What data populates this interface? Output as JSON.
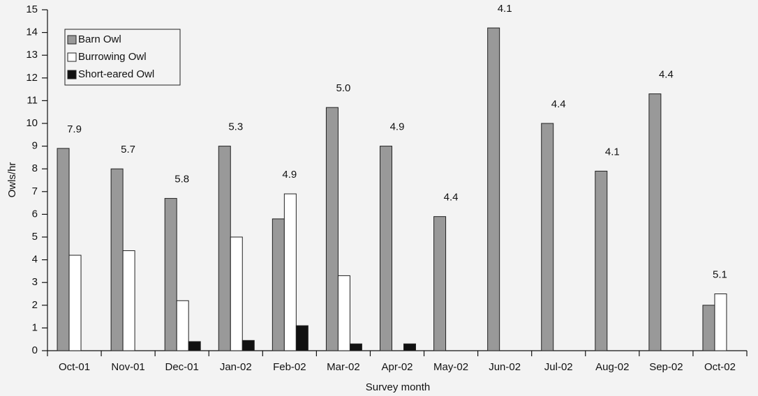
{
  "chart_data": {
    "type": "bar",
    "x_label": "Survey month",
    "y_label": "Owls/hr",
    "categories": [
      "Oct-01",
      "Nov-01",
      "Dec-01",
      "Jan-02",
      "Feb-02",
      "Mar-02",
      "Apr-02",
      "May-02",
      "Jun-02",
      "Jul-02",
      "Aug-02",
      "Sep-02",
      "Oct-02"
    ],
    "series": [
      {
        "name": "Barn Owl",
        "color": "#999999",
        "values": [
          8.9,
          8.0,
          6.7,
          9.0,
          5.8,
          10.7,
          9.0,
          5.9,
          14.2,
          10.0,
          7.9,
          11.3,
          2.0
        ]
      },
      {
        "name": "Burrowing Owl",
        "color": "#ffffff",
        "values": [
          4.2,
          4.4,
          2.2,
          5.0,
          6.9,
          3.3,
          0,
          0,
          0,
          0,
          0,
          0,
          2.5
        ]
      },
      {
        "name": "Short-eared Owl",
        "color": "#111111",
        "values": [
          0,
          0,
          0.4,
          0.45,
          1.1,
          0.3,
          0.3,
          0,
          0,
          0,
          0,
          0,
          0
        ]
      }
    ],
    "annotations": [
      "7.9",
      "5.7",
      "5.8",
      "5.3",
      "4.9",
      "5.0",
      "4.9",
      "4.4",
      "4.1",
      "4.4",
      "4.1",
      "4.4",
      "5.1"
    ],
    "ylim": [
      0,
      15
    ],
    "yticks": [
      0,
      1,
      2,
      3,
      4,
      5,
      6,
      7,
      8,
      9,
      10,
      11,
      12,
      13,
      14,
      15
    ],
    "grid": false,
    "legend": "upper left"
  }
}
